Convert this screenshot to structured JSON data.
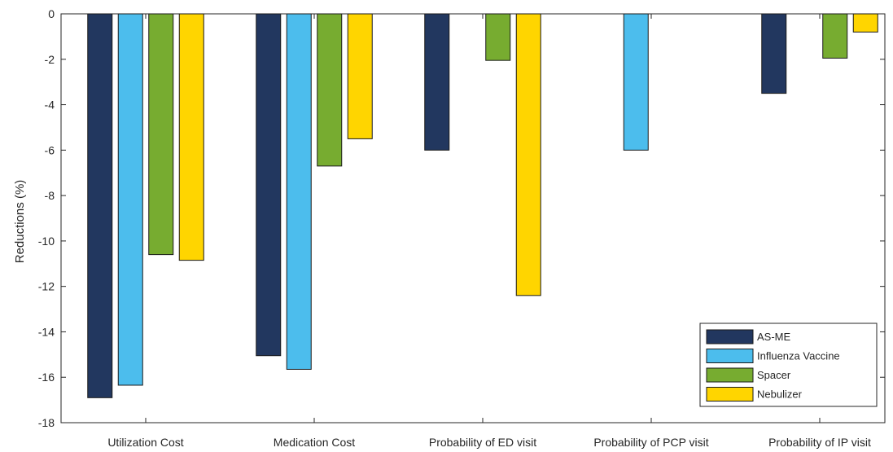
{
  "chart_data": {
    "type": "bar",
    "title": "",
    "xlabel": "",
    "ylabel": "Reductions (%)",
    "ylim": [
      -18,
      0
    ],
    "yticks": [
      0,
      -2,
      -4,
      -6,
      -8,
      -10,
      -12,
      -14,
      -16,
      -18
    ],
    "grid": false,
    "legend_position": "bottom-right",
    "categories": [
      "Utilization Cost",
      "Medication Cost",
      "Probability of ED visit",
      "Probability of PCP visit",
      "Probability of IP visit"
    ],
    "series": [
      {
        "name": "AS-ME",
        "color": "#22375f",
        "values": [
          -16.9,
          -15.05,
          -6.0,
          0,
          -3.5
        ]
      },
      {
        "name": "Influenza Vaccine",
        "color": "#4cbded",
        "values": [
          -16.35,
          -15.65,
          0,
          -6.0,
          0
        ]
      },
      {
        "name": "Spacer",
        "color": "#77ac30",
        "values": [
          -10.6,
          -6.7,
          -2.05,
          0,
          -1.95
        ]
      },
      {
        "name": "Nebulizer",
        "color": "#ffd500",
        "values": [
          -10.85,
          -5.5,
          -12.4,
          0,
          -0.8
        ]
      }
    ]
  }
}
